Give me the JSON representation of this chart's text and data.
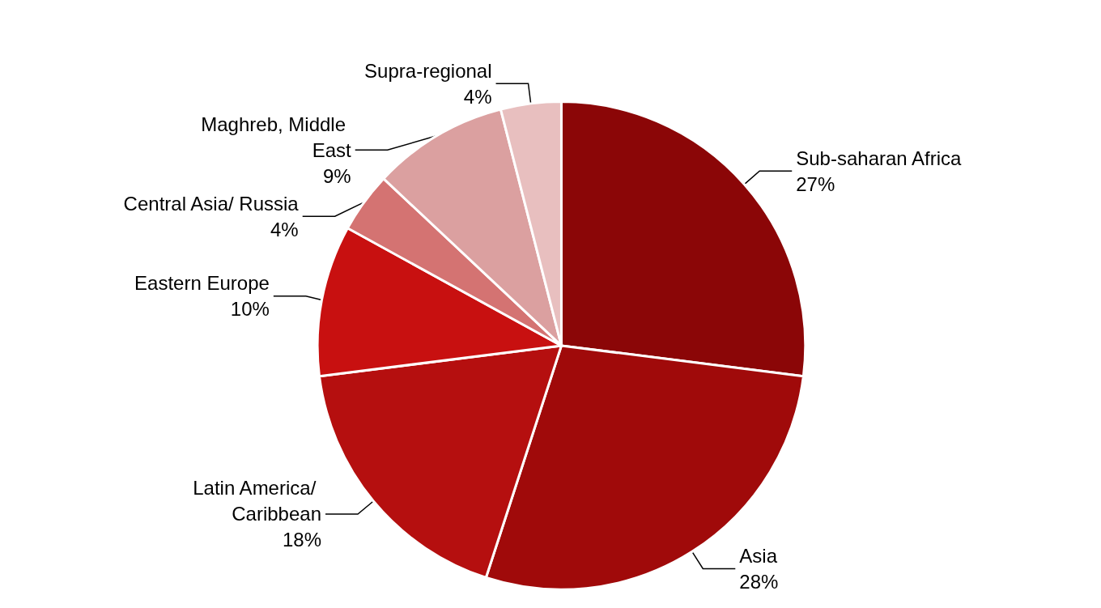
{
  "chart_data": {
    "type": "pie",
    "categories": [
      "Sub-saharan Africa",
      "Asia",
      "Latin America/ Caribbean",
      "Eastern Europe",
      "Central Asia/ Russia",
      "Maghreb, Middle East",
      "Supra-regional"
    ],
    "values": [
      27,
      28,
      18,
      10,
      4,
      9,
      4
    ],
    "colors": [
      "#8b0607",
      "#a00a0a",
      "#b50f0f",
      "#c81010",
      "#d47372",
      "#dba0a0",
      "#e8bfbf"
    ],
    "value_labels": [
      "27%",
      "28%",
      "18%",
      "10%",
      "4%",
      "9%",
      "4%"
    ],
    "legend": false
  }
}
